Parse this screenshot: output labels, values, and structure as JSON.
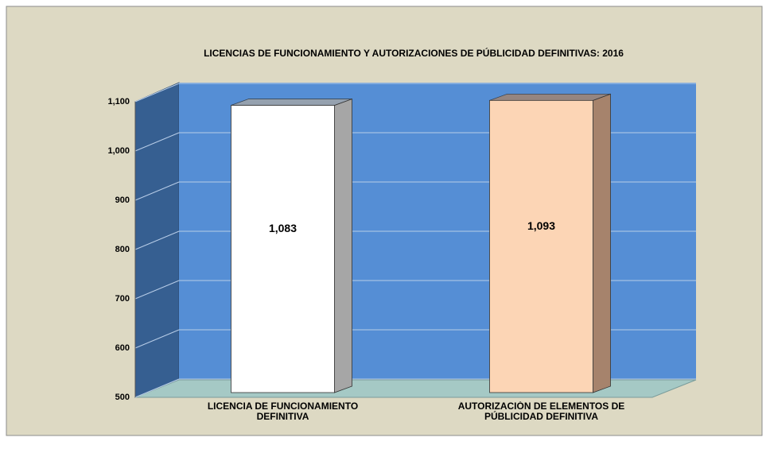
{
  "chart_data": {
    "type": "bar3d",
    "title": "LICENCIAS  DE  FUNCIONAMIENTO  Y AUTORIZACIONES  DE  PÚBLICIDAD  DEFINITIVAS:  2016",
    "categories": [
      "LICENCIA DE FUNCIONAMIENTO DEFINITIVA",
      "AUTORIZACIÓN DE ELEMENTOS DE PÚBLICIDAD DEFINITIVA"
    ],
    "values": [
      1083,
      1093
    ],
    "value_labels": [
      "1,083",
      "1,093"
    ],
    "colors": [
      "#ffffff",
      "#fcd5b5"
    ],
    "ylim": [
      500,
      1100
    ],
    "yticks": [
      500,
      600,
      700,
      800,
      900,
      {
        "value": 1000,
        "label": "1,000"
      },
      {
        "value": 1100,
        "label": "1,100"
      }
    ],
    "grid": true
  }
}
